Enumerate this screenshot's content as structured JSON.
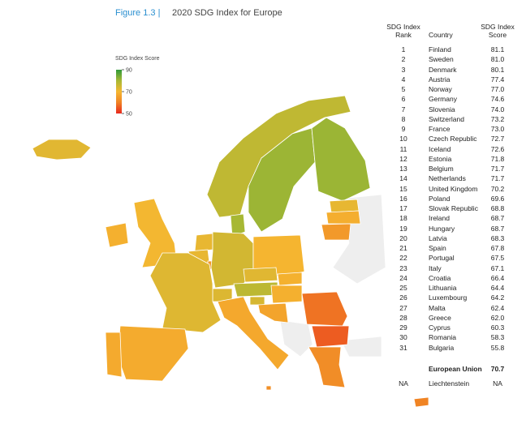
{
  "header": {
    "figure": "Figure 1.3 |",
    "title": "2020 SDG Index for Europe"
  },
  "legend": {
    "title": "SDG Index Score",
    "ticks": [
      90,
      70,
      50
    ]
  },
  "table": {
    "columns": [
      "SDG Index Rank",
      "Country",
      "SDG Index Score"
    ],
    "rows": [
      [
        1,
        "Finland",
        "81.1"
      ],
      [
        2,
        "Sweden",
        "81.0"
      ],
      [
        3,
        "Denmark",
        "80.1"
      ],
      [
        4,
        "Austria",
        "77.4"
      ],
      [
        5,
        "Norway",
        "77.0"
      ],
      [
        6,
        "Germany",
        "74.6"
      ],
      [
        7,
        "Slovenia",
        "74.0"
      ],
      [
        8,
        "Switzerland",
        "73.2"
      ],
      [
        9,
        "France",
        "73.0"
      ],
      [
        10,
        "Czech Republic",
        "72.7"
      ],
      [
        11,
        "Iceland",
        "72.6"
      ],
      [
        12,
        "Estonia",
        "71.8"
      ],
      [
        13,
        "Belgium",
        "71.7"
      ],
      [
        14,
        "Netherlands",
        "71.7"
      ],
      [
        15,
        "United Kingdom",
        "70.2"
      ],
      [
        16,
        "Poland",
        "69.6"
      ],
      [
        17,
        "Slovak Republic",
        "68.8"
      ],
      [
        18,
        "Ireland",
        "68.7"
      ],
      [
        19,
        "Hungary",
        "68.7"
      ],
      [
        20,
        "Latvia",
        "68.3"
      ],
      [
        21,
        "Spain",
        "67.8"
      ],
      [
        22,
        "Portugal",
        "67.5"
      ],
      [
        23,
        "Italy",
        "67.1"
      ],
      [
        24,
        "Croatia",
        "66.4"
      ],
      [
        25,
        "Lithuania",
        "64.4"
      ],
      [
        26,
        "Luxembourg",
        "64.2"
      ],
      [
        27,
        "Malta",
        "62.4"
      ],
      [
        28,
        "Greece",
        "62.0"
      ],
      [
        29,
        "Cyprus",
        "60.3"
      ],
      [
        30,
        "Romania",
        "58.3"
      ],
      [
        31,
        "Bulgaria",
        "55.8"
      ]
    ],
    "summary": {
      "name": "European Union",
      "score": "70.7"
    },
    "missing": [
      "NA",
      "Liechtenstein",
      "NA"
    ]
  }
}
